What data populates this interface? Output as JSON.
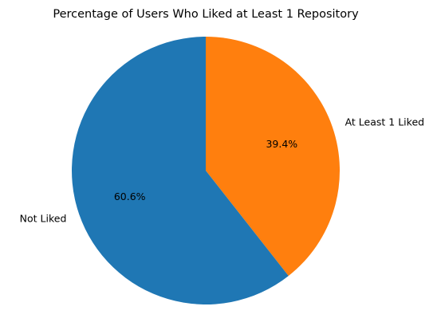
{
  "chart_data": {
    "type": "pie",
    "title": "Percentage of Users Who Liked at Least 1 Repository",
    "slices": [
      {
        "label": "At Least 1 Liked",
        "value": 39.4,
        "pct_label": "39.4%",
        "color": "#ff7f0e"
      },
      {
        "label": "Not Liked",
        "value": 60.6,
        "pct_label": "60.6%",
        "color": "#1f77b4"
      }
    ],
    "start_angle_deg": 90,
    "direction": "clockwise",
    "legend": "none"
  }
}
